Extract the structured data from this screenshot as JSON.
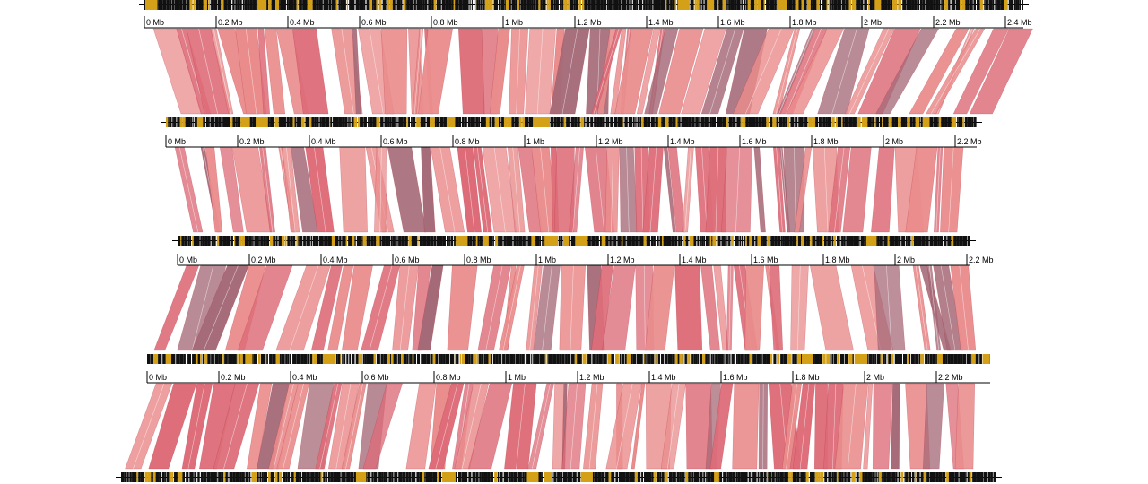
{
  "colors": {
    "gene_dark": "#111111",
    "gene_gold": "#d4a017",
    "synteny_light": "#ea8c8c",
    "synteny_mid": "#dd6c78",
    "synteny_dark": "#a56a78",
    "synteny_edge": "#b03040"
  },
  "genomes": [
    {
      "name": "",
      "length_mb": 2.45,
      "ticks": [
        "0 Mb",
        "0.2 Mb",
        "0.4 Mb",
        "0.6 Mb",
        "0.8 Mb",
        "1 Mb",
        "1.2 Mb",
        "1.4 Mb",
        "1.6 Mb",
        "1.8 Mb",
        "2 Mb",
        "2.2 Mb",
        "2.4 Mb"
      ]
    },
    {
      "name": "",
      "length_mb": 2.26,
      "ticks": [
        "0 Mb",
        "0.2 Mb",
        "0.4 Mb",
        "0.6 Mb",
        "0.8 Mb",
        "1 Mb",
        "1.2 Mb",
        "1.4 Mb",
        "1.6 Mb",
        "1.8 Mb",
        "2 Mb",
        "2.2 Mb"
      ]
    },
    {
      "name": "",
      "length_mb": 2.21,
      "ticks": [
        "0 Mb",
        "0.2 Mb",
        "0.4 Mb",
        "0.6 Mb",
        "0.8 Mb",
        "1 Mb",
        "1.2 Mb",
        "1.4 Mb",
        "1.6 Mb",
        "1.8 Mb",
        "2 Mb",
        "2.2 Mb"
      ]
    },
    {
      "name": "",
      "length_mb": 2.35,
      "ticks": [
        "0 Mb",
        "0.2 Mb",
        "0.4 Mb",
        "0.6 Mb",
        "0.8 Mb",
        "1 Mb",
        "1.2 Mb",
        "1.4 Mb",
        "1.6 Mb",
        "1.8 Mb",
        "2 Mb",
        "2.2 Mb"
      ]
    },
    {
      "name": "",
      "length_mb": 2.44,
      "ticks": []
    }
  ]
}
